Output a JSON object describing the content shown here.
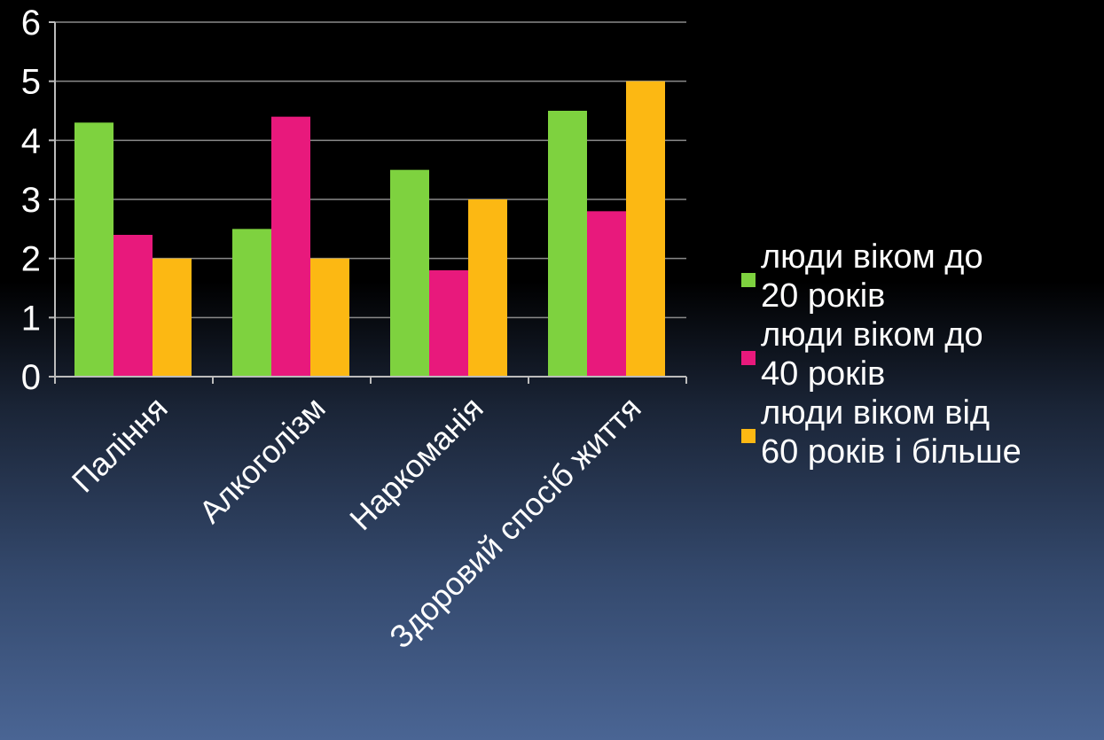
{
  "chart_data": {
    "type": "bar",
    "categories": [
      "Паління",
      "Алкоголізм",
      "Наркоманія",
      "Здоровий спосіб життя"
    ],
    "series": [
      {
        "name": "люди віком до 20 років",
        "values": [
          4.3,
          2.5,
          3.5,
          4.5
        ],
        "color": "#7ed23f"
      },
      {
        "name": "люди віком до 40 років",
        "values": [
          2.4,
          4.4,
          1.8,
          2.8
        ],
        "color": "#e8197c"
      },
      {
        "name": "люди віком від 60 років і більше",
        "values": [
          2.0,
          2.0,
          3.0,
          5.0
        ],
        "color": "#fcb813"
      }
    ],
    "yticks": [
      "0",
      "1",
      "2",
      "3",
      "4",
      "5",
      "6"
    ],
    "ylim": [
      0,
      6
    ],
    "grid": true,
    "legend_position": "right",
    "legend": [
      {
        "line1": "люди віком до",
        "line2": "20 років",
        "color": "#7ed23f"
      },
      {
        "line1": "люди віком до",
        "line2": "40 років",
        "color": "#e8197c"
      },
      {
        "line1": "люди віком від",
        "line2": "60 років і більше",
        "color": "#fcb813"
      }
    ]
  }
}
